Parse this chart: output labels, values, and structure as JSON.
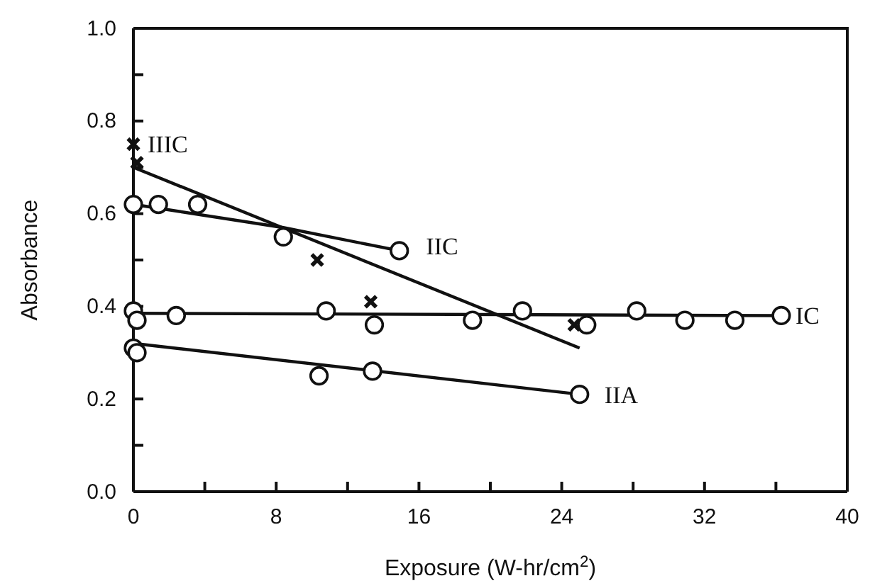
{
  "chart_data": {
    "type": "scatter",
    "xlabel": "Exposure (W-hr/cm$^{2}$)",
    "ylabel": "Absorbance",
    "xlim": [
      0,
      40
    ],
    "ylim": [
      0,
      1
    ],
    "xticks": [
      0,
      {
        "value": 4,
        "label": null
      },
      8,
      {
        "value": 12,
        "label": null
      },
      16,
      {
        "value": 20,
        "label": null
      },
      24,
      {
        "value": 28,
        "label": null
      },
      32,
      {
        "value": 36,
        "label": null
      },
      40
    ],
    "yticks": [
      {
        "value": 0,
        "label": "0.0"
      },
      {
        "value": 0.1,
        "label": null
      },
      {
        "value": 0.2,
        "label": "0.2"
      },
      {
        "value": 0.3,
        "label": null
      },
      {
        "value": 0.4,
        "label": "0.4"
      },
      {
        "value": 0.5,
        "label": null
      },
      {
        "value": 0.6,
        "label": "0.6"
      },
      {
        "value": 0.7,
        "label": null
      },
      {
        "value": 0.8,
        "label": "0.8"
      },
      {
        "value": 0.9,
        "label": null
      },
      {
        "value": 1.0,
        "label": "1.0"
      }
    ],
    "grid": false,
    "series": [
      {
        "marker": "cross",
        "color": "#111111",
        "x": [
          0,
          0.2,
          10.3,
          13.3,
          24.7
        ],
        "values": [
          0.75,
          0.71,
          0.5,
          0.41,
          0.36
        ]
      },
      {
        "type": "line",
        "marker": "none",
        "color": "#111111",
        "x": [
          0,
          25
        ],
        "values": [
          0.7,
          0.31
        ]
      },
      {
        "marker": "circle",
        "color": "#111111",
        "x": [
          0,
          1.4,
          3.6,
          8.4,
          14.9
        ],
        "values": [
          0.62,
          0.62,
          0.62,
          0.55,
          0.52
        ]
      },
      {
        "type": "line",
        "marker": "none",
        "color": "#111111",
        "x": [
          0,
          8.4,
          14.9
        ],
        "values": [
          0.62,
          0.57,
          0.52
        ]
      },
      {
        "marker": "circle",
        "color": "#111111",
        "x": [
          0,
          0.2,
          2.4,
          10.8,
          13.5,
          19,
          21.8,
          25.4,
          28.2,
          30.9,
          33.7,
          36.3
        ],
        "values": [
          0.39,
          0.37,
          0.38,
          0.39,
          0.36,
          0.37,
          0.39,
          0.36,
          0.39,
          0.37,
          0.37,
          0.38
        ]
      },
      {
        "type": "line",
        "marker": "none",
        "color": "#111111",
        "x": [
          0,
          36.3
        ],
        "values": [
          0.385,
          0.38
        ]
      },
      {
        "marker": "circle",
        "color": "#111111",
        "x": [
          0,
          0.2,
          10.4,
          13.4,
          25
        ],
        "values": [
          0.31,
          0.3,
          0.25,
          0.26,
          0.21
        ]
      },
      {
        "type": "line",
        "marker": "none",
        "color": "#111111",
        "x": [
          0,
          25
        ],
        "values": [
          0.32,
          0.21
        ]
      }
    ],
    "annotations": [
      {
        "text": "IIIC",
        "x": 0,
        "y": 0.75
      },
      {
        "text": "IIC",
        "x": 15.6,
        "y": 0.53
      },
      {
        "text": "IC",
        "x": 36.3,
        "y": 0.38
      },
      {
        "text": "IIA",
        "x": 25.6,
        "y": 0.21
      }
    ]
  }
}
